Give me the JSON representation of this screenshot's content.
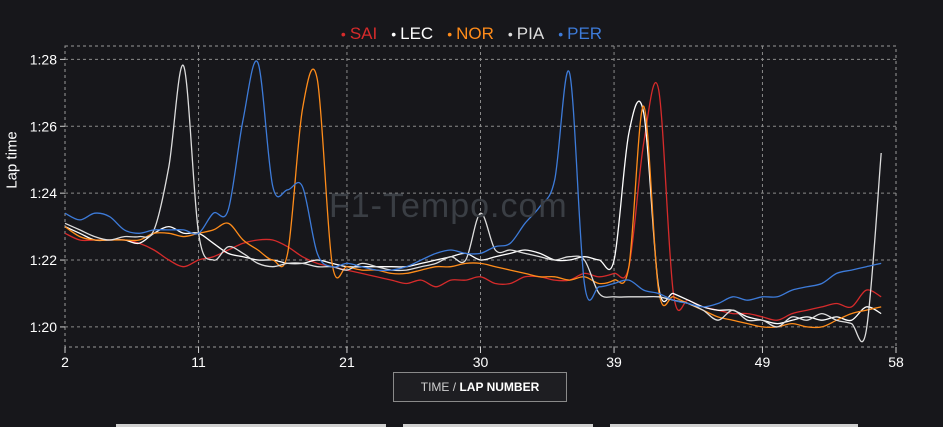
{
  "watermark": "F1-Tempo.com",
  "x_button": {
    "prefix": "TIME / ",
    "main": "LAP NUMBER"
  },
  "chart_data": {
    "type": "line",
    "ylabel": "Lap time",
    "xlim": [
      2,
      58
    ],
    "ylim": [
      79.4,
      88.4
    ],
    "x_ticks": [
      2,
      11,
      21,
      30,
      39,
      49,
      58
    ],
    "y_ticks": [
      {
        "value": 80,
        "label": "1:20"
      },
      {
        "value": 82,
        "label": "1:22"
      },
      {
        "value": 84,
        "label": "1:24"
      },
      {
        "value": 86,
        "label": "1:26"
      },
      {
        "value": 88,
        "label": "1:28"
      }
    ],
    "grid": true,
    "legend_position": "top-center",
    "series": [
      {
        "name": "SAI",
        "color": "#d62b2b",
        "x": [
          2,
          3,
          4,
          5,
          6,
          7,
          8,
          9,
          10,
          11,
          12,
          13,
          14,
          15,
          16,
          17,
          18,
          19,
          20,
          21,
          22,
          23,
          24,
          25,
          26,
          27,
          28,
          29,
          30,
          31,
          32,
          33,
          34,
          35,
          36,
          37,
          38,
          39,
          40,
          41,
          42,
          43,
          44,
          45,
          46,
          47,
          48,
          49,
          50,
          51,
          52,
          53,
          54,
          55,
          56,
          57
        ],
        "y": [
          82.8,
          82.6,
          82.6,
          82.6,
          82.6,
          82.5,
          82.3,
          82.0,
          81.8,
          82.0,
          82.1,
          82.3,
          82.5,
          82.6,
          82.6,
          82.4,
          82.1,
          81.9,
          81.8,
          81.7,
          81.6,
          81.5,
          81.4,
          81.3,
          81.4,
          81.2,
          81.4,
          81.4,
          81.5,
          81.3,
          81.3,
          81.5,
          81.5,
          81.4,
          81.4,
          81.6,
          81.5,
          81.6,
          81.8,
          85.5,
          87.1,
          81.0,
          80.8,
          80.6,
          80.5,
          80.4,
          80.4,
          80.3,
          80.2,
          80.4,
          80.5,
          80.6,
          80.7,
          80.6,
          81.1,
          80.9
        ]
      },
      {
        "name": "LEC",
        "color": "#ffffff",
        "x": [
          2,
          3,
          4,
          5,
          6,
          7,
          8,
          9,
          10,
          11,
          12,
          13,
          14,
          15,
          16,
          17,
          18,
          19,
          20,
          21,
          22,
          23,
          24,
          25,
          26,
          27,
          28,
          29,
          30,
          31,
          32,
          33,
          34,
          35,
          36,
          37,
          38,
          39,
          40,
          41,
          42,
          43,
          44,
          45,
          46,
          47,
          48,
          49,
          50,
          51,
          52,
          53,
          54,
          55,
          56,
          57
        ],
        "y": [
          83.0,
          82.8,
          82.6,
          82.6,
          82.6,
          82.5,
          82.8,
          83.0,
          82.8,
          82.8,
          82.5,
          82.2,
          82.1,
          82.0,
          82.0,
          81.9,
          81.9,
          82.0,
          81.9,
          81.8,
          81.8,
          81.8,
          81.8,
          81.8,
          81.9,
          82.0,
          82.1,
          82.2,
          82.0,
          82.1,
          82.2,
          82.3,
          82.2,
          82.0,
          82.0,
          82.1,
          82.0,
          82.0,
          85.8,
          86.4,
          81.2,
          81.0,
          80.8,
          80.6,
          80.5,
          80.5,
          80.3,
          80.2,
          80.1,
          80.2,
          80.3,
          80.2,
          80.3,
          80.2,
          80.6,
          80.4
        ]
      },
      {
        "name": "NOR",
        "color": "#ff8c1a",
        "x": [
          2,
          3,
          4,
          5,
          6,
          7,
          8,
          9,
          10,
          11,
          12,
          13,
          14,
          15,
          16,
          17,
          18,
          19,
          20,
          21,
          22,
          23,
          24,
          25,
          26,
          27,
          28,
          29,
          30,
          31,
          32,
          33,
          34,
          35,
          36,
          37,
          38,
          39,
          40,
          41,
          42,
          43,
          44,
          45,
          46,
          47,
          48,
          49,
          50,
          51,
          52,
          53,
          54,
          55,
          56,
          57
        ],
        "y": [
          83.0,
          82.7,
          82.6,
          82.6,
          82.6,
          82.6,
          82.8,
          82.8,
          82.7,
          82.8,
          82.9,
          83.1,
          82.6,
          82.3,
          82.0,
          82.2,
          86.5,
          87.4,
          81.9,
          81.8,
          81.7,
          81.7,
          81.6,
          81.6,
          81.7,
          81.8,
          81.8,
          81.9,
          81.9,
          81.8,
          81.7,
          81.6,
          81.5,
          81.5,
          81.4,
          81.5,
          81.3,
          81.4,
          81.8,
          86.6,
          81.1,
          80.9,
          80.7,
          80.5,
          80.3,
          80.2,
          80.1,
          80.0,
          80.0,
          80.1,
          80.0,
          80.0,
          80.2,
          80.4,
          80.5,
          80.6
        ]
      },
      {
        "name": "PIA",
        "color": "#dddddd",
        "x": [
          2,
          3,
          4,
          5,
          6,
          7,
          8,
          9,
          10,
          11,
          12,
          13,
          14,
          15,
          16,
          17,
          18,
          19,
          20,
          21,
          22,
          23,
          24,
          25,
          26,
          27,
          28,
          29,
          30,
          31,
          32,
          33,
          34,
          35,
          36,
          37,
          38,
          39,
          40,
          41,
          42,
          43,
          44,
          45,
          46,
          47,
          48,
          49,
          50,
          51,
          52,
          53,
          54,
          55,
          56,
          57
        ],
        "y": [
          83.1,
          82.9,
          82.7,
          82.6,
          82.7,
          82.7,
          82.9,
          84.8,
          87.8,
          82.8,
          82.0,
          82.4,
          82.2,
          81.9,
          81.8,
          81.9,
          81.9,
          81.8,
          81.8,
          81.7,
          81.9,
          81.8,
          81.7,
          81.7,
          81.8,
          81.9,
          82.1,
          82.0,
          83.4,
          82.3,
          82.3,
          82.2,
          82.1,
          82.0,
          82.1,
          82.0,
          81.0,
          80.9,
          80.9,
          80.9,
          80.9,
          80.8,
          80.7,
          80.5,
          80.2,
          80.5,
          80.2,
          80.2,
          80.0,
          80.3,
          80.2,
          80.4,
          80.2,
          80.1,
          79.9,
          85.2
        ]
      },
      {
        "name": "PER",
        "color": "#3d7bd9",
        "x": [
          2,
          3,
          4,
          5,
          6,
          7,
          8,
          9,
          10,
          11,
          12,
          13,
          14,
          15,
          16,
          17,
          18,
          19,
          20,
          21,
          22,
          23,
          24,
          25,
          26,
          27,
          28,
          29,
          30,
          31,
          32,
          33,
          34,
          35,
          36,
          37,
          38,
          39,
          40,
          41,
          42,
          43,
          44,
          45,
          46,
          47,
          48,
          49,
          50,
          51,
          52,
          53,
          54,
          55,
          56,
          57
        ],
        "y": [
          83.4,
          83.2,
          83.4,
          83.3,
          82.9,
          82.8,
          82.9,
          82.9,
          82.9,
          82.8,
          83.4,
          83.5,
          86.2,
          87.9,
          84.2,
          84.1,
          84.2,
          82.2,
          81.8,
          81.9,
          81.8,
          81.7,
          81.7,
          81.8,
          82.0,
          82.2,
          82.3,
          82.2,
          82.2,
          82.4,
          82.5,
          83.1,
          83.6,
          84.4,
          87.6,
          81.3,
          81.2,
          81.3,
          81.4,
          81.1,
          81.0,
          80.8,
          80.7,
          80.6,
          80.7,
          80.9,
          80.8,
          80.9,
          80.9,
          81.1,
          81.2,
          81.3,
          81.6,
          81.7,
          81.8,
          81.9
        ]
      }
    ]
  }
}
